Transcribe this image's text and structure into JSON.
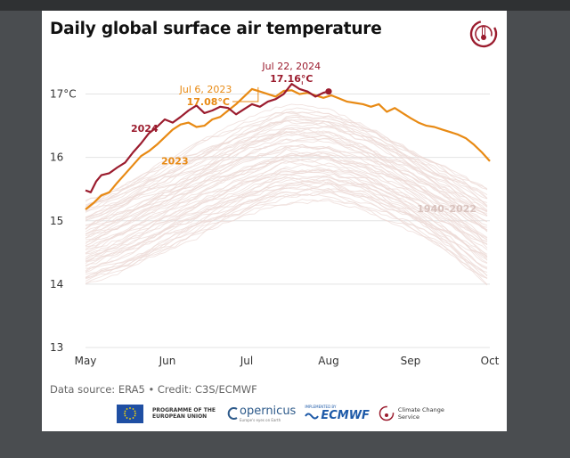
{
  "title": "Daily global surface air temperature",
  "source": "Data source: ERA5 • Credit: C3S/ECMWF",
  "footer": {
    "eu_label": "PROGRAMME OF THE EUROPEAN UNION",
    "copernicus_label": "opernicus",
    "copernicus_sub": "Europe's eyes on Earth",
    "implemented_label": "IMPLEMENTED BY",
    "ecmwf_label": "ECMWF",
    "c3s_label": "Climate Change Service"
  },
  "colors": {
    "y2024": "#9b1c2e",
    "y2023": "#e88a14",
    "historical": "#ecd9d6",
    "grid": "#e3e3e3"
  },
  "chart_data": {
    "type": "line",
    "title": "Daily global surface air temperature",
    "x_axis": {
      "ticks": [
        "May",
        "Jun",
        "Jul",
        "Aug",
        "Sep",
        "Oct"
      ],
      "tick_days": [
        0,
        31,
        61,
        92,
        123,
        153
      ],
      "range_days": [
        0,
        153
      ]
    },
    "y_axis": {
      "ticks": [
        "13",
        "14",
        "15",
        "16",
        "17°C"
      ],
      "tick_values": [
        13,
        14,
        15,
        16,
        17
      ],
      "range": [
        13,
        17.5
      ]
    },
    "grid": true,
    "series": [
      {
        "name": "2024",
        "label": "2024",
        "color": "#9b1c2e",
        "x_days": [
          0,
          2,
          4,
          6,
          9,
          12,
          15,
          18,
          21,
          24,
          27,
          30,
          33,
          36,
          39,
          42,
          45,
          48,
          51,
          54,
          57,
          60,
          63,
          66,
          69,
          72,
          75,
          78,
          81,
          84,
          87,
          90,
          92
        ],
        "values": [
          15.48,
          15.45,
          15.62,
          15.72,
          15.75,
          15.84,
          15.92,
          16.08,
          16.22,
          16.38,
          16.48,
          16.6,
          16.55,
          16.64,
          16.74,
          16.82,
          16.7,
          16.74,
          16.8,
          16.78,
          16.68,
          16.76,
          16.84,
          16.8,
          16.88,
          16.92,
          17.0,
          17.16,
          17.08,
          17.04,
          16.96,
          17.02,
          17.04
        ]
      },
      {
        "name": "2023",
        "label": "2023",
        "color": "#e88a14",
        "x_days": [
          0,
          3,
          6,
          9,
          12,
          15,
          18,
          21,
          24,
          27,
          30,
          33,
          36,
          39,
          42,
          45,
          48,
          51,
          54,
          57,
          60,
          63,
          66,
          69,
          72,
          75,
          78,
          81,
          84,
          87,
          90,
          93,
          96,
          99,
          102,
          105,
          108,
          111,
          114,
          117,
          120,
          123,
          126,
          129,
          132,
          135,
          138,
          141,
          144,
          147,
          150,
          153
        ],
        "values": [
          15.18,
          15.28,
          15.4,
          15.45,
          15.6,
          15.74,
          15.88,
          16.02,
          16.1,
          16.2,
          16.32,
          16.44,
          16.52,
          16.55,
          16.48,
          16.5,
          16.6,
          16.64,
          16.74,
          16.84,
          16.96,
          17.08,
          17.04,
          17.0,
          16.96,
          17.05,
          17.06,
          17.0,
          17.02,
          16.98,
          16.94,
          16.98,
          16.93,
          16.88,
          16.86,
          16.84,
          16.8,
          16.84,
          16.72,
          16.78,
          16.7,
          16.62,
          16.55,
          16.5,
          16.48,
          16.44,
          16.4,
          16.36,
          16.3,
          16.2,
          16.08,
          15.94
        ]
      }
    ],
    "historical_range": {
      "label": "1940–2022",
      "x_days": [
        0,
        15,
        31,
        46,
        61,
        76,
        92,
        107,
        123,
        138,
        153
      ],
      "upper": [
        15.3,
        15.6,
        15.95,
        16.25,
        16.55,
        16.8,
        16.75,
        16.5,
        16.15,
        15.8,
        15.45
      ],
      "lower": [
        14.0,
        14.25,
        14.55,
        14.85,
        15.1,
        15.3,
        15.35,
        15.2,
        14.9,
        14.5,
        14.0
      ]
    },
    "annotations": [
      {
        "date": "Jul 22, 2024",
        "value": "17.16°C",
        "x_day": 82,
        "y": 17.16
      },
      {
        "date": "Jul 6, 2023",
        "value": "17.08°C",
        "x_day": 66,
        "y": 17.08
      }
    ]
  }
}
